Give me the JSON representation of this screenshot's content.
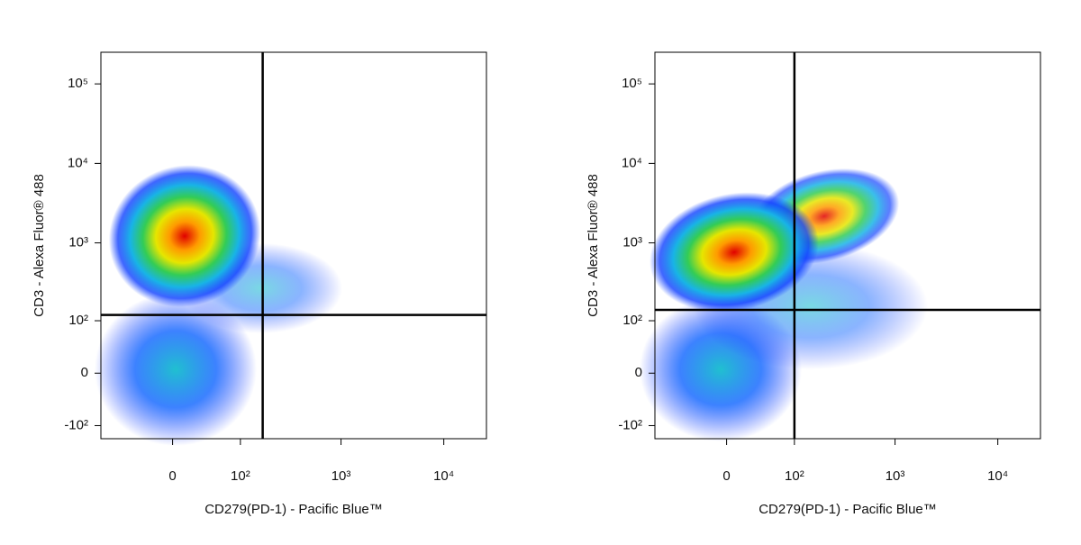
{
  "chart_data": [
    {
      "type": "density-scatter",
      "xscale": "biexponential",
      "yscale": "biexponential",
      "xlabel": "CD279(PD-1) - Pacific Blue™",
      "ylabel": "CD3 - Alexa Fluor® 488",
      "xlim": [
        -110,
        26000
      ],
      "ylim": [
        -150,
        250000
      ],
      "xticks": [
        0,
        {
          "value": 100,
          "label": "10²"
        },
        {
          "value": 1000,
          "label": "10³"
        },
        {
          "value": 10000,
          "label": "10⁴"
        }
      ],
      "yticks": [
        {
          "value": -100,
          "label": "-10²"
        },
        0,
        {
          "value": 100,
          "label": "10²"
        },
        {
          "value": 1000,
          "label": "10³"
        },
        {
          "value": 10000,
          "label": "10⁴"
        },
        {
          "value": 100000,
          "label": "10⁵"
        }
      ],
      "quadrant_x": 170,
      "quadrant_y": 120
    },
    {
      "type": "density-scatter",
      "xscale": "biexponential",
      "yscale": "biexponential",
      "xlabel": "CD279(PD-1) - Pacific Blue™",
      "ylabel": "CD3 - Alexa Fluor® 488",
      "xlim": [
        -110,
        26000
      ],
      "ylim": [
        -150,
        250000
      ],
      "xticks": [
        0,
        {
          "value": 100,
          "label": "10²"
        },
        {
          "value": 1000,
          "label": "10³"
        },
        {
          "value": 10000,
          "label": "10⁴"
        }
      ],
      "yticks": [
        {
          "value": -100,
          "label": "-10²"
        },
        0,
        {
          "value": 100,
          "label": "10²"
        },
        {
          "value": 1000,
          "label": "10³"
        },
        {
          "value": 10000,
          "label": "10⁴"
        },
        {
          "value": 100000,
          "label": "10⁵"
        }
      ],
      "quadrant_x": 100,
      "quadrant_y": 140
    }
  ]
}
